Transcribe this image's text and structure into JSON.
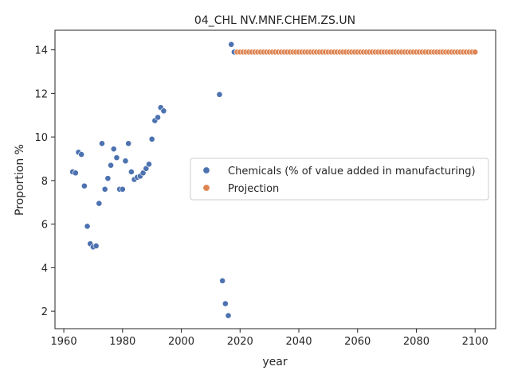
{
  "chart_data": {
    "type": "scatter",
    "title": "04_CHL NV.MNF.CHEM.ZS.UN",
    "xlabel": "year",
    "ylabel": "Proportion %",
    "xlim": [
      1957,
      2107
    ],
    "ylim": [
      1.2,
      14.9
    ],
    "xticks": [
      1960,
      1980,
      2000,
      2020,
      2040,
      2060,
      2080,
      2100
    ],
    "yticks": [
      2,
      4,
      6,
      8,
      10,
      12,
      14
    ],
    "grid": false,
    "legend_position": "center-right",
    "series": [
      {
        "name": "Chemicals (% of value added in manufacturing)",
        "color": "#4c72b0",
        "points": [
          [
            1963,
            8.4
          ],
          [
            1964,
            8.35
          ],
          [
            1965,
            9.3
          ],
          [
            1966,
            9.2
          ],
          [
            1967,
            7.75
          ],
          [
            1968,
            5.9
          ],
          [
            1969,
            5.1
          ],
          [
            1970,
            4.95
          ],
          [
            1971,
            5.0
          ],
          [
            1972,
            6.95
          ],
          [
            1973,
            9.7
          ],
          [
            1974,
            7.6
          ],
          [
            1975,
            8.1
          ],
          [
            1976,
            8.7
          ],
          [
            1977,
            9.45
          ],
          [
            1978,
            9.05
          ],
          [
            1979,
            7.6
          ],
          [
            1980,
            7.6
          ],
          [
            1981,
            8.9
          ],
          [
            1982,
            9.7
          ],
          [
            1983,
            8.4
          ],
          [
            1984,
            8.05
          ],
          [
            1985,
            8.15
          ],
          [
            1986,
            8.2
          ],
          [
            1987,
            8.35
          ],
          [
            1988,
            8.55
          ],
          [
            1989,
            8.75
          ],
          [
            1990,
            9.9
          ],
          [
            1991,
            10.75
          ],
          [
            1992,
            10.9
          ],
          [
            1993,
            11.35
          ],
          [
            1994,
            11.2
          ],
          [
            2013,
            11.95
          ],
          [
            2014,
            3.4
          ],
          [
            2015,
            2.35
          ],
          [
            2016,
            1.8
          ],
          [
            2017,
            14.25
          ],
          [
            2018,
            13.9
          ]
        ]
      },
      {
        "name": "Projection",
        "color": "#dd8452",
        "x_start": 2019,
        "x_end": 2100,
        "value": 13.9
      }
    ]
  }
}
